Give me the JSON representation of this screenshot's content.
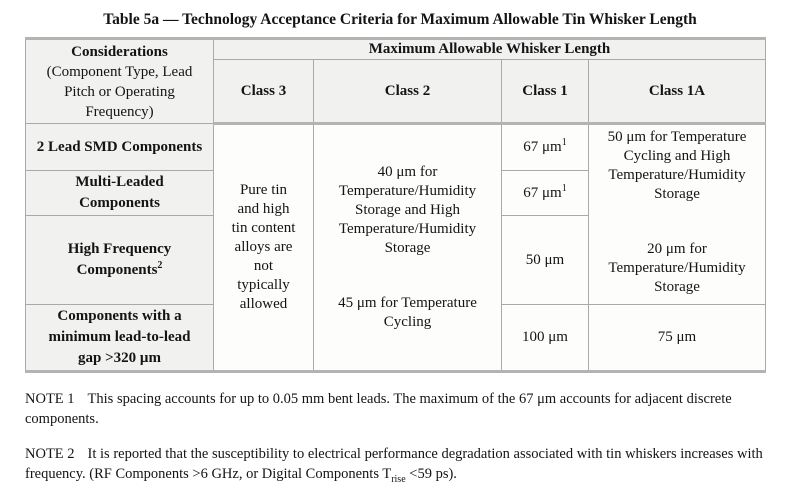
{
  "title": "Table 5a — Technology Acceptance Criteria for Maximum Allowable Tin Whisker Length",
  "colors": {
    "page_background": "#ffffff",
    "cell_shade": "#f1f1ef",
    "border_gray": "#a9a9a9",
    "text": "#141414"
  },
  "table": {
    "header": {
      "considerations_line1": "Considerations",
      "considerations_line2": "(Component Type, Lead Pitch or Operating Frequency)",
      "whisker_header": "Maximum Allowable Whisker Length",
      "classes": [
        "Class 3",
        "Class 2",
        "Class 1",
        "Class 1A"
      ]
    },
    "rows": [
      {
        "consideration": "2 Lead SMD Components",
        "class1": "67 μm",
        "class1_sup": "1"
      },
      {
        "consideration": "Multi-Leaded Components",
        "class1": "67 μm",
        "class1_sup": "1"
      },
      {
        "consideration": "High Frequency Components",
        "consideration_sup": "2",
        "class1": "50 μm"
      },
      {
        "consideration": "Components with a minimum lead-to-lead gap >320 μm",
        "class1": "100 μm",
        "class1A": "75 μm"
      }
    ],
    "merged": {
      "class3": "Pure tin and high tin content alloys are not typically allowed",
      "class2_p1": "40 μm for Temperature/Humidity Storage and High Temperature/Humidity Storage",
      "class2_p2": "45 μm for Temperature Cycling",
      "class1A_p1": "50 μm for Temperature Cycling and High Temperature/Humidity Storage",
      "class1A_p2": "20 μm for Temperature/Humidity Storage"
    }
  },
  "notes": [
    {
      "label": "NOTE 1",
      "text": "This spacing accounts for up to 0.05 mm bent leads. The maximum of the 67 μm accounts for adjacent discrete components."
    },
    {
      "label": "NOTE 2",
      "text_pre": "It is reported that the susceptibility to electrical performance degradation associated with tin whiskers increases with frequency. (RF Components >6 GHz, or Digital Components T",
      "sub": "rise",
      "text_post": " <59 ps)."
    }
  ]
}
